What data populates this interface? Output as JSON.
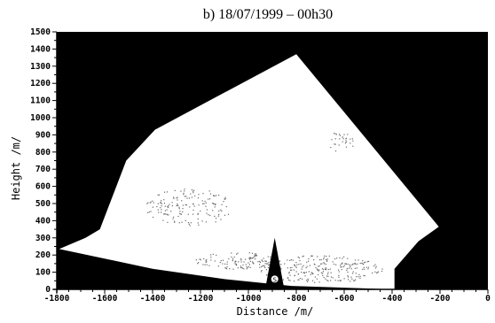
{
  "chart_data": {
    "type": "heatmap",
    "title": "b) 18/07/1999 – 00h30",
    "xlabel": "Distance /m/",
    "ylabel": "Height /m/",
    "xlim": [
      -1800,
      0
    ],
    "ylim": [
      0,
      1500
    ],
    "x_ticks": [
      -1800,
      -1600,
      -1400,
      -1200,
      -1000,
      -800,
      -600,
      -400,
      -200,
      0
    ],
    "y_ticks": [
      0,
      100,
      200,
      300,
      400,
      500,
      600,
      700,
      800,
      900,
      1000,
      1100,
      1200,
      1300,
      1400,
      1500
    ],
    "scan_region": [
      [
        -1790,
        235
      ],
      [
        -1680,
        300
      ],
      [
        -1620,
        350
      ],
      [
        -1510,
        750
      ],
      [
        -1390,
        930
      ],
      [
        -800,
        1370
      ],
      [
        -205,
        365
      ],
      [
        -290,
        280
      ],
      [
        -390,
        120
      ],
      [
        -390,
        0
      ],
      [
        -820,
        20
      ],
      [
        -1100,
        60
      ],
      [
        -1400,
        120
      ],
      [
        -1790,
        235
      ]
    ],
    "tower": {
      "x": -890,
      "base_half_width": 40,
      "top": 300,
      "marker_label": "S"
    },
    "grid": false,
    "legend": "none",
    "colors": {
      "background": "#000000",
      "scanned_area": "#ffffff",
      "echo": "#6a6a6a"
    }
  }
}
